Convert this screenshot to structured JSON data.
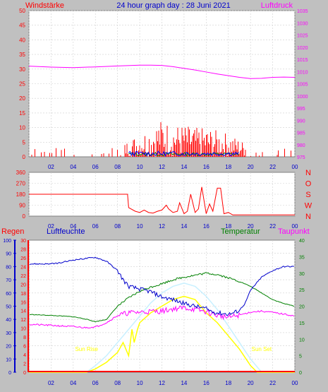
{
  "header": {
    "title": "24 hour graph day : 28 Juni 2021",
    "left_label": "Windstärke",
    "right_label": "Luftdruck"
  },
  "lower_labels": {
    "regen": "Regen",
    "luftfeuchte": "Luftfeuchte",
    "temperatur": "Temperatur",
    "taupunkt": "Taupunkt",
    "sun_rise": "Sun Rise",
    "sun_set": "Sun Set"
  },
  "colors": {
    "background": "#c0c0c0",
    "plot_bg": "#ffffff",
    "grid": "#d0d0d0",
    "wind": "#ff0000",
    "gust_green": "#008000",
    "gust_blue": "#0000ff",
    "pressure": "#ff00ff",
    "direction": "#ff0000",
    "rain": "#ff0000",
    "humidity": "#0000cc",
    "temperature": "#008000",
    "dewpoint": "#ff00ff",
    "solar": "#ffff00",
    "uv": "#c8f0ff"
  },
  "chart_data": [
    {
      "type": "line",
      "panel": "wind-pressure",
      "title": "24 hour graph day : 28 Juni 2021",
      "x_ticks": [
        "02",
        "04",
        "06",
        "08",
        "10",
        "12",
        "14",
        "16",
        "18",
        "20",
        "22",
        "00"
      ],
      "y_left": {
        "label": "Windstärke",
        "ticks": [
          0,
          5,
          10,
          15,
          20,
          25,
          30,
          35,
          40,
          45,
          50
        ],
        "range": [
          0,
          50
        ]
      },
      "y_right": {
        "label": "Luftdruck",
        "ticks": [
          975,
          980,
          985,
          990,
          995,
          1000,
          1005,
          1010,
          1015,
          1020,
          1025,
          1030,
          1035
        ],
        "range": [
          975,
          1035
        ]
      },
      "series": [
        {
          "axis": "right",
          "x": [
            0,
            2,
            4,
            6,
            8,
            10,
            11,
            12,
            13,
            14,
            15,
            16,
            17,
            18,
            19,
            20,
            21,
            22,
            23,
            24
          ],
          "values": [
            1012.2,
            1011.8,
            1011.6,
            1011.9,
            1012.3,
            1012.6,
            1012.6,
            1012.5,
            1012.0,
            1011.3,
            1010.6,
            1009.8,
            1009.0,
            1008.3,
            1007.6,
            1007.1,
            1007.2,
            1007.6,
            1007.7,
            1007.6
          ]
        }
      ],
      "wind_envelope": {
        "x": [
          0,
          2,
          4,
          6,
          8,
          8.5,
          9,
          10,
          11,
          12,
          13,
          14,
          15,
          16,
          17,
          18,
          19,
          20,
          21,
          22,
          23,
          24
        ],
        "max": [
          3,
          3,
          3,
          3,
          3,
          4,
          6,
          8,
          10,
          13,
          11,
          11,
          10,
          10,
          9,
          8,
          6,
          4,
          3,
          3,
          3,
          3
        ]
      }
    },
    {
      "type": "line",
      "panel": "wind-direction",
      "x_ticks": [
        "02",
        "04",
        "06",
        "08",
        "10",
        "12",
        "14",
        "16",
        "18",
        "20",
        "22",
        "00"
      ],
      "y_left": {
        "ticks": [
          0,
          90,
          180,
          270,
          360
        ],
        "range": [
          0,
          360
        ]
      },
      "y_right": {
        "ticks": [
          "N",
          "W",
          "S",
          "O",
          "N"
        ]
      },
      "series": [
        {
          "x": [
            0,
            8.9,
            9.0,
            9.6,
            10.0,
            10.4,
            10.8,
            11.2,
            11.6,
            12.0,
            12.4,
            12.6,
            13.0,
            13.4,
            13.6,
            14.0,
            14.3,
            14.6,
            15.0,
            15.3,
            15.6,
            16.0,
            16.3,
            16.6,
            17.0,
            17.3,
            17.6,
            18.0,
            18.4,
            18.8,
            19.2,
            20,
            22,
            24
          ],
          "values": [
            180,
            180,
            70,
            40,
            30,
            50,
            30,
            25,
            40,
            50,
            90,
            60,
            30,
            40,
            110,
            20,
            40,
            180,
            30,
            60,
            240,
            20,
            100,
            40,
            230,
            230,
            20,
            30,
            10,
            10,
            10,
            10,
            10,
            10
          ]
        }
      ]
    },
    {
      "type": "line",
      "panel": "climate",
      "x_ticks": [
        "02",
        "04",
        "06",
        "08",
        "10",
        "12",
        "14",
        "16",
        "18",
        "20",
        "22",
        "00"
      ],
      "y_humidity": {
        "label": "Luftfeuchte",
        "ticks": [
          0,
          10,
          20,
          30,
          40,
          50,
          60,
          70,
          80,
          90,
          100
        ],
        "range": [
          0,
          100
        ]
      },
      "y_rain": {
        "label": "Regen",
        "ticks": [
          0,
          2,
          4,
          6,
          8,
          10,
          12,
          14,
          16,
          18,
          20,
          22,
          24,
          26,
          28,
          30
        ],
        "range": [
          0,
          30
        ]
      },
      "y_temp": {
        "label": "Temperatur",
        "ticks": [
          0,
          5,
          10,
          15,
          20,
          25,
          30,
          35,
          40
        ],
        "range": [
          0,
          40
        ]
      },
      "series": [
        {
          "name": "Luftfeuchte",
          "axis": "humidity",
          "x": [
            0,
            2,
            3,
            4,
            5,
            6,
            7,
            8,
            8.5,
            9,
            9.5,
            10,
            11,
            12,
            13,
            14,
            15,
            16,
            16.5,
            17,
            18,
            18.5,
            19,
            19.5,
            20,
            21,
            22,
            23,
            24
          ],
          "values": [
            82,
            82,
            83,
            85,
            86,
            87,
            84,
            77,
            70,
            65,
            64,
            63,
            61,
            57,
            55,
            52,
            50,
            48,
            46,
            45,
            44,
            45,
            47,
            52,
            62,
            72,
            77,
            80,
            80
          ]
        },
        {
          "name": "Temperatur",
          "axis": "temp",
          "x": [
            0,
            2,
            4,
            5,
            6,
            7,
            8,
            9,
            10,
            11,
            12,
            13,
            14,
            15,
            16,
            17,
            18,
            19,
            20,
            21,
            22,
            23,
            24
          ],
          "values": [
            17.5,
            17.2,
            16.8,
            16.2,
            15.3,
            16.0,
            20.0,
            22.5,
            24.5,
            25.8,
            26.8,
            28.0,
            28.8,
            29.4,
            30.0,
            29.6,
            28.6,
            27.5,
            26.0,
            24.0,
            22.0,
            20.8,
            20.0
          ]
        },
        {
          "name": "Taupunkt",
          "axis": "temp",
          "x": [
            0,
            2,
            4,
            5,
            6,
            7,
            8,
            9,
            10,
            11,
            12,
            13,
            14,
            15,
            16,
            17,
            18,
            19,
            20,
            21,
            22,
            23,
            24
          ],
          "values": [
            14.5,
            14.2,
            13.8,
            13.5,
            13.7,
            15.0,
            17.2,
            18.0,
            18.2,
            18.4,
            18.5,
            19.2,
            19.5,
            19.0,
            18.3,
            17.2,
            16.6,
            17.3,
            18.2,
            18.5,
            18.1,
            17.6,
            17.0
          ]
        },
        {
          "name": "Solar",
          "axis": "temp",
          "x": [
            0,
            5.2,
            6,
            7,
            8,
            8.5,
            9,
            9.3,
            9.5,
            9.8,
            10,
            11,
            12,
            13,
            14,
            15,
            16,
            17,
            18,
            19,
            20,
            20.6,
            21,
            24
          ],
          "values": [
            0,
            0,
            1,
            3,
            6,
            9,
            5,
            13,
            9,
            13,
            15,
            18,
            20,
            22,
            23,
            22,
            18,
            15,
            11,
            7,
            2,
            0,
            0,
            0
          ]
        },
        {
          "name": "UV",
          "axis": "temp",
          "x": [
            0,
            5.2,
            6,
            7,
            8,
            9,
            10,
            11,
            12,
            13,
            14,
            15,
            16,
            17,
            18,
            19,
            20,
            21,
            24
          ],
          "values": [
            0,
            0,
            2,
            5,
            9,
            13,
            17,
            21,
            24,
            26,
            27,
            26,
            23,
            19,
            14,
            9,
            4,
            0,
            0
          ]
        },
        {
          "name": "Regen",
          "axis": "rain",
          "x": [
            0,
            24
          ],
          "values": [
            0,
            0
          ]
        }
      ],
      "annotations": [
        {
          "text": "Sun Rise",
          "x": 5.2
        },
        {
          "text": "Sun Set",
          "x": 21.0
        }
      ]
    }
  ]
}
